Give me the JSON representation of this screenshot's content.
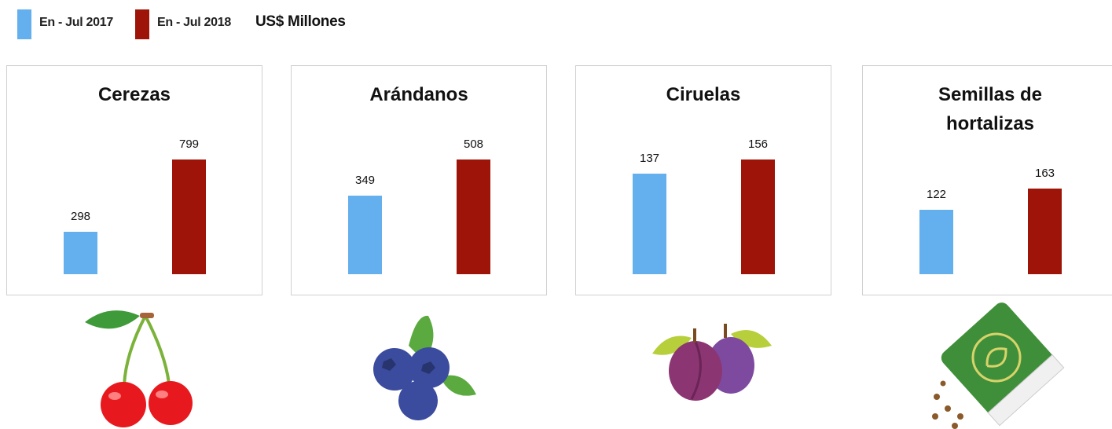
{
  "legend": {
    "series": [
      {
        "name": "En - Jul 2017",
        "color": "#64b0ef"
      },
      {
        "name": "En - Jul 2018",
        "color": "#9e1408"
      }
    ],
    "unit": "US$ Millones"
  },
  "chart_data": [
    {
      "type": "bar",
      "title": "Cerezas",
      "values": [
        298,
        799
      ]
    },
    {
      "type": "bar",
      "title": "Arándanos",
      "values": [
        349,
        508
      ]
    },
    {
      "type": "bar",
      "title": "Ciruelas",
      "values": [
        137,
        156
      ]
    },
    {
      "type": "bar",
      "title": "Semillas de hortalizas",
      "values": [
        122,
        163
      ]
    }
  ]
}
